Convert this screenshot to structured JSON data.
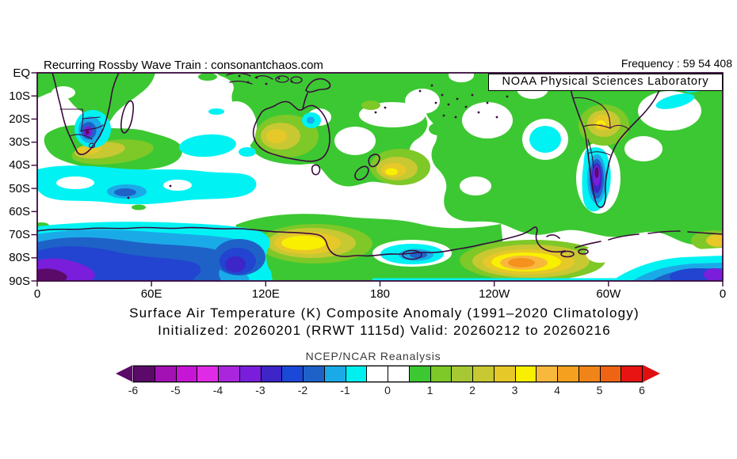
{
  "header": {
    "left_label": "Recurring Rossby Wave Train : consonantchaos.com",
    "right_label": "Frequency : 59 54 408",
    "org_box": "NOAA Physical Sciences Laboratory"
  },
  "titles": {
    "line1": "Surface Air Temperature (K) Composite Anomaly (1991–2020 Climatology)",
    "line2": "Initialized: 20260201 (RRWT 1115d) Valid: 20260212 to 20260216",
    "source": "NCEP/NCAR Reanalysis"
  },
  "map_axes": {
    "lat_labels": [
      "EQ",
      "10S",
      "20S",
      "30S",
      "40S",
      "50S",
      "60S",
      "70S",
      "80S",
      "90S"
    ],
    "lon_labels": [
      "0",
      "60E",
      "120E",
      "180",
      "120W",
      "60W",
      "0"
    ]
  },
  "colorbar": {
    "tick_labels": [
      "-6",
      "-5",
      "-4",
      "-3",
      "-2",
      "-1",
      "0",
      "1",
      "2",
      "3",
      "4",
      "5",
      "6"
    ],
    "cells": [
      "#5C0A69",
      "#A311B5",
      "#C715D6",
      "#E02BE6",
      "#AA26DC",
      "#7A1EDC",
      "#3D25C8",
      "#1C48D8",
      "#1E62C8",
      "#1BAAE8",
      "#00F0F0",
      "#FFFFFF",
      "#FFFFFF",
      "#3CC832",
      "#7EC828",
      "#A6C832",
      "#C8C832",
      "#E6C828",
      "#F8F000",
      "#F8B83C",
      "#F5A01E",
      "#F08418",
      "#EE6414",
      "#E81414"
    ],
    "left_arrow": "#5C0A69",
    "right_arrow": "#E01010"
  },
  "colors": {
    "green": "#3CC832",
    "ygreen": "#7EC828",
    "olive": "#C8C832",
    "gold": "#E6C828",
    "yellow": "#F8F000",
    "orange_lt": "#F8B83C",
    "orange": "#F5921E",
    "cyan": "#00F2F2",
    "ltblue": "#1BAAE8",
    "steel": "#1E62C8",
    "blue": "#2244D0",
    "indigo": "#3D25C8",
    "bviolet": "#7A1EDC",
    "violet": "#AA26DC",
    "dviolet": "#5C0A69",
    "land_outline": "#3A0A3C",
    "frame": "#3A0A3C",
    "white": "#FFFFFF"
  },
  "chart_data": {
    "type": "filled_contour_map",
    "title": "Surface Air Temperature (K) Composite Anomaly (1991–2020 Climatology)",
    "subtitle": "Initialized: 20260201 (RRWT 1115d) Valid: 20260212 to 20260216",
    "source": "NCEP/NCAR Reanalysis",
    "variable": "Surface Air Temperature anomaly",
    "units": "K",
    "lat_range": [
      "EQ",
      "90S"
    ],
    "lon_ticks": [
      "0",
      "60E",
      "120E",
      "180",
      "120W",
      "60W",
      "0"
    ],
    "contour_levels": {
      "min": -6,
      "max": 6,
      "step": 0.5
    },
    "features": [
      {
        "region": "interior South Africa (~20-30E, 20-32S)",
        "anomaly_K": -4
      },
      {
        "region": "south coast of Africa",
        "anomaly_K": 2.5
      },
      {
        "region": "equatorial / eastern Africa",
        "anomaly_K": 1
      },
      {
        "region": "mid Indian Ocean (~75-105E, 28-37S)",
        "anomaly_K": -1
      },
      {
        "region": "southern Ocean Indian sector (45-60S)",
        "anomaly_K": -1.5
      },
      {
        "region": "central Australia interior",
        "anomaly_K": 2.5
      },
      {
        "region": "eastern Australia small pocket",
        "anomaly_K": -1.5
      },
      {
        "region": "east of New Zealand (~175E-175W, 38-45S)",
        "anomaly_K": 3
      },
      {
        "region": "Maritime Continent and tropical west Pacific",
        "anomaly_K": 1
      },
      {
        "region": "east Antarctic coast (~100-140E, 75-82S)",
        "anomaly_K": 3
      },
      {
        "region": "east Antarctica interior (0-90E, 75-90S)",
        "anomaly_K": -3.5
      },
      {
        "region": "Ross Sea (~180, 78-84S)",
        "anomaly_K": -2
      },
      {
        "region": "West Antarctica (~90-140W, 78-87S)",
        "anomaly_K": 4.5
      },
      {
        "region": "Patagonia / southern Andes",
        "anomaly_K": -4.5
      },
      {
        "region": "northern Argentina / Paraguay",
        "anomaly_K": 3.5
      },
      {
        "region": "broad South Pacific, South America, South Atlantic",
        "anomaly_K": 1
      },
      {
        "region": "Atlantic sector near pole (0-30W, 80-90S)",
        "anomaly_K": -3.5
      },
      {
        "region": "coastal cyan streaks off Brazil",
        "anomaly_K": -1
      }
    ]
  }
}
